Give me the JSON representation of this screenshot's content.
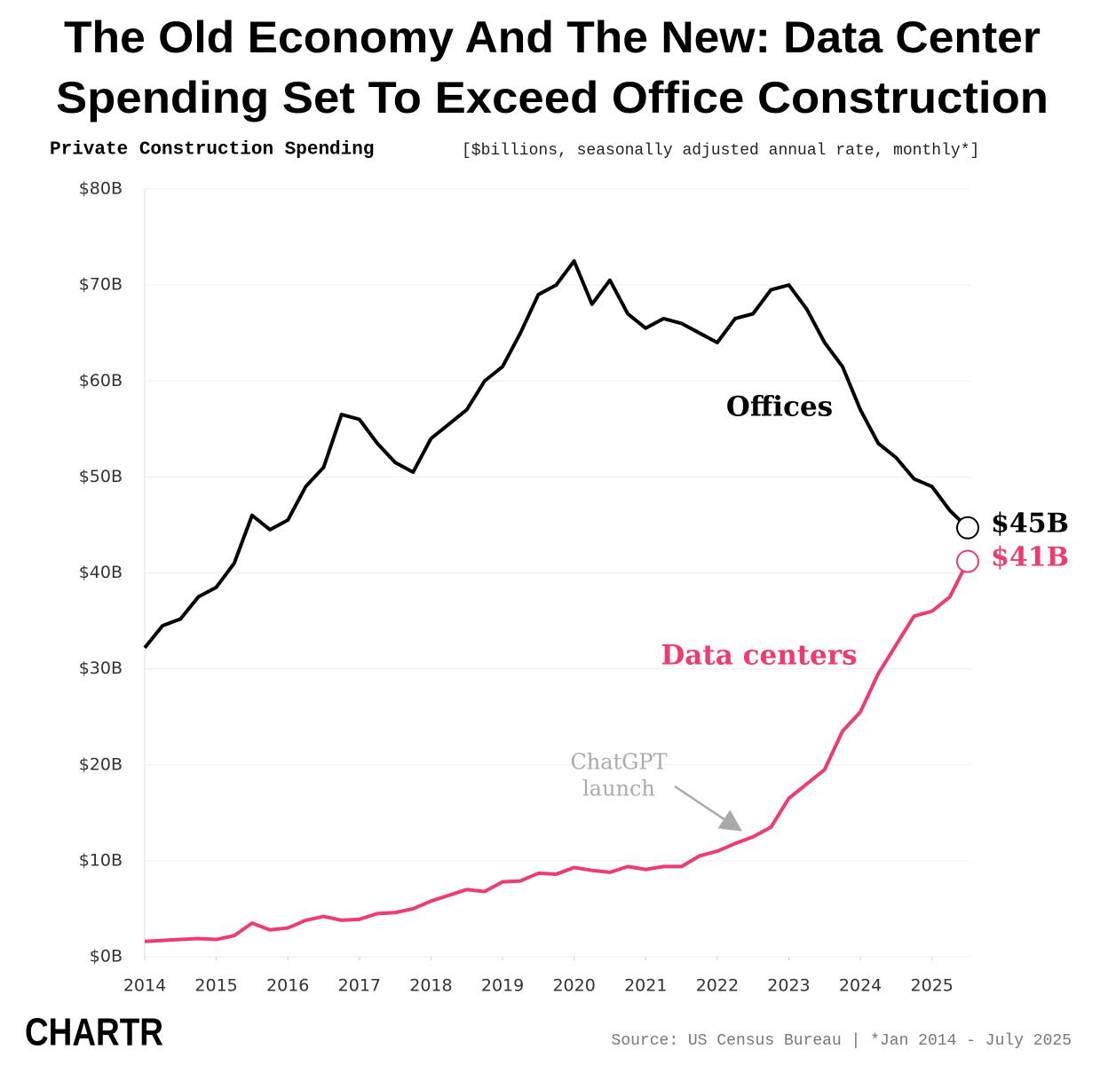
{
  "chart_data": {
    "type": "line",
    "title": [
      "The Old Economy And The New: Data Center",
      "Spending Set To Exceed Office Construction"
    ],
    "subtitle": "Private Construction Spending",
    "subtitle_note": "[$billions, seasonally adjusted annual rate, monthly*]",
    "source": "Source: US Census Bureau | *Jan 2014 - July 2025",
    "logo": "CHARTR",
    "x": [
      2014,
      2014.25,
      2014.5,
      2014.75,
      2015,
      2015.25,
      2015.5,
      2015.75,
      2016,
      2016.25,
      2016.5,
      2016.75,
      2017,
      2017.25,
      2017.5,
      2017.75,
      2018,
      2018.25,
      2018.5,
      2018.75,
      2019,
      2019.25,
      2019.5,
      2019.75,
      2020,
      2020.25,
      2020.5,
      2020.75,
      2021,
      2021.25,
      2021.5,
      2021.75,
      2022,
      2022.25,
      2022.5,
      2022.75,
      2023,
      2023.25,
      2023.5,
      2023.75,
      2024,
      2024.25,
      2024.5,
      2024.75,
      2025,
      2025.25,
      2025.5
    ],
    "series": [
      {
        "name": "Offices",
        "color": "#000000",
        "end_label": "$45B",
        "values": [
          32.2,
          34.5,
          35.2,
          37.5,
          38.5,
          41,
          46,
          44.5,
          45.5,
          49,
          51,
          56.5,
          56,
          53.5,
          51.5,
          50.5,
          54,
          55.5,
          57,
          60,
          61.5,
          65,
          69,
          70,
          72.5,
          68,
          70.5,
          67,
          65.5,
          66.5,
          66,
          65,
          64,
          66.5,
          67,
          69.5,
          70,
          67.5,
          64,
          61.5,
          57,
          53.5,
          52,
          49.8,
          49,
          46.5,
          44.7
        ]
      },
      {
        "name": "Data centers",
        "color": "#ef3b6e",
        "end_label": "$41B",
        "values": [
          1.6,
          1.7,
          1.8,
          1.9,
          1.8,
          2.2,
          3.5,
          2.8,
          3.0,
          3.8,
          4.2,
          3.8,
          3.9,
          4.5,
          4.6,
          5.0,
          5.8,
          6.4,
          7.0,
          6.8,
          7.8,
          7.9,
          8.7,
          8.6,
          9.3,
          9.0,
          8.8,
          9.4,
          9.1,
          9.4,
          9.4,
          10.5,
          11.0,
          11.8,
          12.5,
          13.5,
          16.5,
          18,
          19.5,
          23.5,
          25.5,
          29.5,
          32.5,
          35.5,
          36,
          37.5,
          41.2
        ]
      }
    ],
    "annotation": [
      "ChatGPT",
      "launch"
    ],
    "xlim": [
      2014,
      2025.5
    ],
    "xticks": [
      2014,
      2015,
      2016,
      2017,
      2018,
      2019,
      2020,
      2021,
      2022,
      2023,
      2024,
      2025
    ],
    "ylim": [
      0,
      80
    ],
    "yticks": [
      {
        "value": 0,
        "label": "$0B"
      },
      {
        "value": 10,
        "label": "$10B"
      },
      {
        "value": 20,
        "label": "$20B"
      },
      {
        "value": 30,
        "label": "$30B"
      },
      {
        "value": 40,
        "label": "$40B"
      },
      {
        "value": 50,
        "label": "$50B"
      },
      {
        "value": 60,
        "label": "$60B"
      },
      {
        "value": 70,
        "label": "$70B"
      },
      {
        "value": 80,
        "label": "$80B"
      }
    ],
    "grid": true
  }
}
